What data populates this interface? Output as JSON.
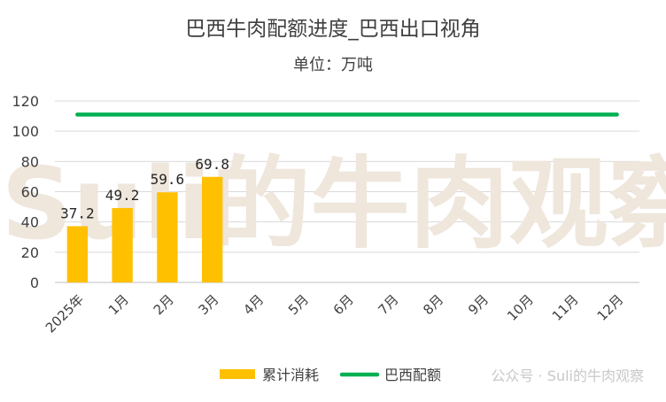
{
  "chart_data": {
    "type": "bar",
    "title": "巴西牛肉配额进度_巴西出口视角",
    "subtitle": "单位：万吨",
    "categories": [
      "2025年",
      "1月",
      "2月",
      "3月",
      "4月",
      "5月",
      "6月",
      "7月",
      "8月",
      "9月",
      "10月",
      "11月",
      "12月"
    ],
    "series": [
      {
        "name": "累计消耗",
        "type": "bar",
        "color": "#FFC000",
        "values": [
          37.2,
          49.2,
          59.6,
          69.8,
          null,
          null,
          null,
          null,
          null,
          null,
          null,
          null,
          null
        ]
      },
      {
        "name": "巴西配额",
        "type": "line",
        "color": "#00B050",
        "values": [
          111,
          111,
          111,
          111,
          111,
          111,
          111,
          111,
          111,
          111,
          111,
          111,
          111
        ]
      }
    ],
    "ylim": [
      0,
      120
    ],
    "yticks": [
      0,
      20,
      40,
      60,
      80,
      100,
      120
    ],
    "grid": true,
    "legend": "bottom",
    "watermark": "Suli的牛肉观察",
    "footer_credit": "公众号 · Suli的牛肉观察"
  }
}
